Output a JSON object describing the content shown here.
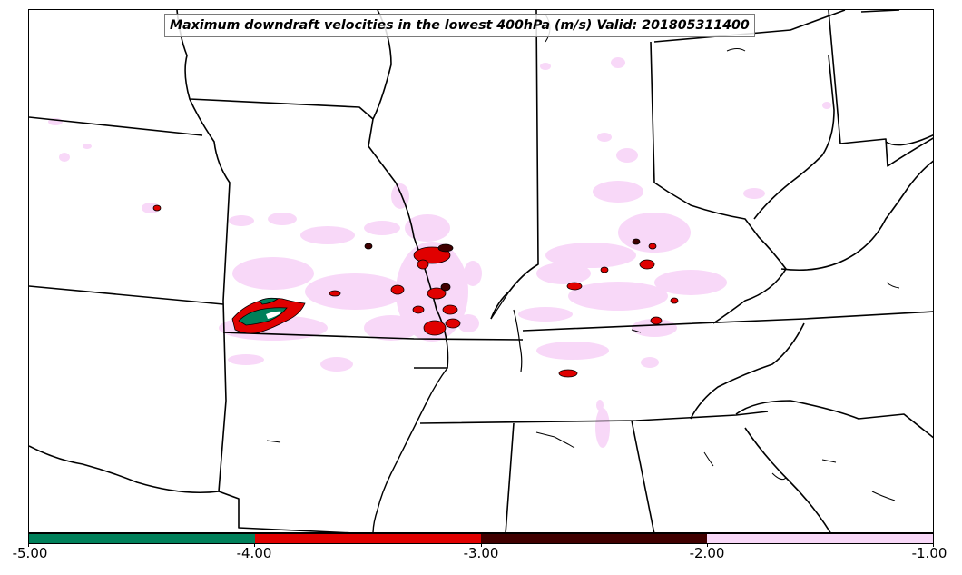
{
  "title": "Maximum downdraft velocities in the lowest 400hPa (m/s) Valid: 201805311400",
  "colorbar": {
    "ticks": [
      "-5.00",
      "-4.00",
      "-3.00",
      "-2.00",
      "-1.00"
    ],
    "colors": [
      "#00805a",
      "#e00000",
      "#400000",
      "#f8d8f8"
    ]
  },
  "map": {
    "background": "#ffffff",
    "boundary_color": "#000000"
  }
}
